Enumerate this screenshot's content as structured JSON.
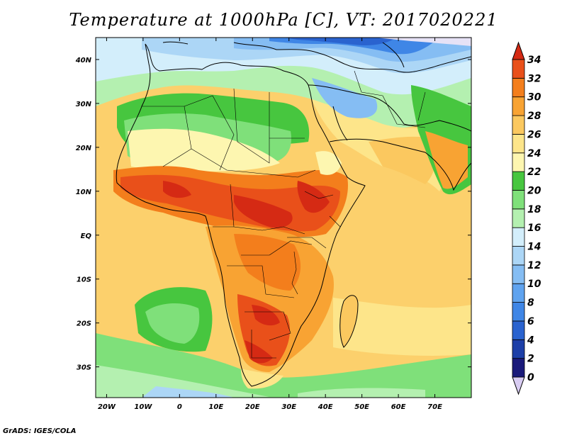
{
  "title": "Temperature at 1000hPa [C], VT: 2017020221",
  "credit": "GrADS: IGES/COLA",
  "map": {
    "lon_ticks": [
      "20W",
      "10W",
      "0",
      "10E",
      "20E",
      "30E",
      "40E",
      "50E",
      "60E",
      "70E"
    ],
    "lat_ticks": [
      "40N",
      "30N",
      "20N",
      "10N",
      "EQ",
      "10S",
      "20S",
      "30S"
    ]
  },
  "colorbar": {
    "labels": [
      "0",
      "2",
      "4",
      "6",
      "8",
      "10",
      "12",
      "14",
      "16",
      "18",
      "20",
      "22",
      "24",
      "26",
      "28",
      "30",
      "32",
      "34"
    ],
    "colors": [
      "#1a1a7a",
      "#1d3fa8",
      "#2a63cf",
      "#3f86e6",
      "#5fa3ef",
      "#85bdf3",
      "#acd6f6",
      "#d3eefb",
      "#b4f0b0",
      "#7fe07a",
      "#47c63f",
      "#fdf6b0",
      "#fde58a",
      "#fbc85f",
      "#f8a333",
      "#f37e1c",
      "#e9501a",
      "#d52a14"
    ],
    "under_color": "#d8ccf2",
    "over_color": "#d52a14"
  }
}
